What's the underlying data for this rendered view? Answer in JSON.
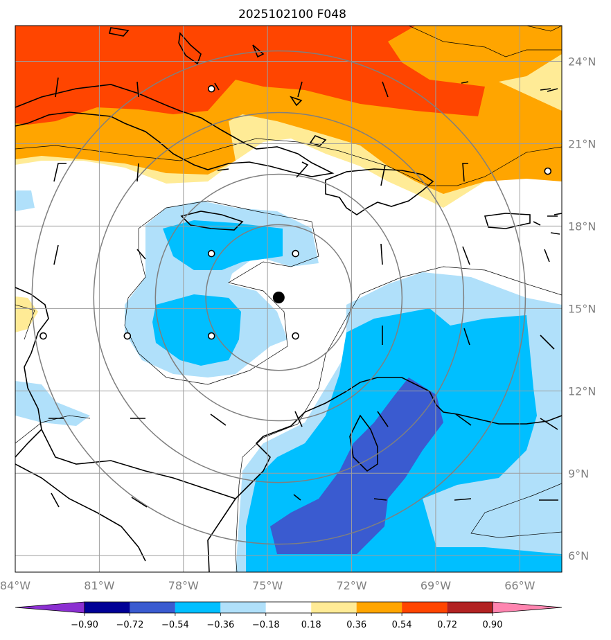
{
  "title": "2025102100 F048",
  "lon_axis": {
    "ticks": [
      {
        "lon": -84,
        "label": "84°W"
      },
      {
        "lon": -81,
        "label": "81°W"
      },
      {
        "lon": -78,
        "label": "78°W"
      },
      {
        "lon": -75,
        "label": "75°W"
      },
      {
        "lon": -72,
        "label": "72°W"
      },
      {
        "lon": -69,
        "label": "69°W"
      },
      {
        "lon": -66,
        "label": "66°W"
      }
    ]
  },
  "lat_axis": {
    "ticks": [
      {
        "lat": 24,
        "label": "24°N"
      },
      {
        "lat": 21,
        "label": "21°N"
      },
      {
        "lat": 18,
        "label": "18°N"
      },
      {
        "lat": 15,
        "label": "15°N"
      },
      {
        "lat": 12,
        "label": "12°N"
      },
      {
        "lat": 9,
        "label": "9°N"
      },
      {
        "lat": 6,
        "label": "6°N"
      }
    ]
  },
  "extent": {
    "lon_min": -84,
    "lon_max": -64.5,
    "lat_min": 5.4,
    "lat_max": 25.3
  },
  "storm_center": {
    "lon": -74.6,
    "lat": 15.4
  },
  "range_rings": {
    "center_lon": -74.6,
    "center_lat": 15.4,
    "radii_deg": [
      2.6,
      4.4,
      6.6,
      8.8
    ]
  },
  "colorbar": {
    "colors": [
      "#8b2fd1",
      "#000096",
      "#3a5bd0",
      "#00bfff",
      "#b0e0fa",
      "#ffffff",
      "#ffeb96",
      "#ffa500",
      "#ff4500",
      "#b22222",
      "#ff85b0"
    ],
    "labels": [
      "−0.90",
      "−0.72",
      "−0.54",
      "−0.36",
      "−0.18",
      "0.18",
      "0.36",
      "0.54",
      "0.72",
      "0.90"
    ]
  },
  "station_markers": [
    {
      "lon": -77,
      "lat": 23
    },
    {
      "lon": -65,
      "lat": 20
    },
    {
      "lon": -77,
      "lat": 17
    },
    {
      "lon": -74,
      "lat": 17
    },
    {
      "lon": -83,
      "lat": 14
    },
    {
      "lon": -80,
      "lat": 14
    },
    {
      "lon": -77,
      "lat": 14
    },
    {
      "lon": -74,
      "lat": 14
    }
  ]
}
